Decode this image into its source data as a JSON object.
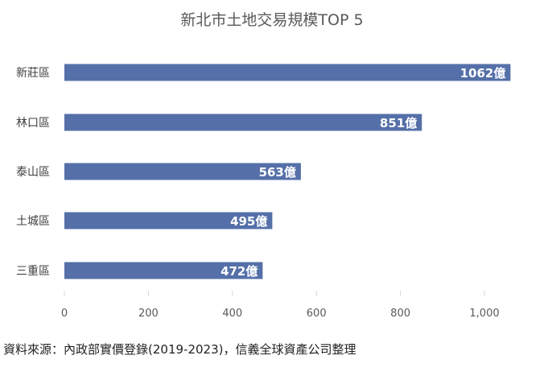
{
  "chart_data": {
    "type": "bar",
    "orientation": "horizontal",
    "title": "新北市土地交易規模TOP 5",
    "categories": [
      "新莊區",
      "林口區",
      "泰山區",
      "土城區",
      "三重區"
    ],
    "values": [
      1062,
      851,
      563,
      495,
      472
    ],
    "data_labels": [
      "1062億",
      "851億",
      "563億",
      "495億",
      "472億"
    ],
    "xlim": [
      0,
      1000
    ],
    "xticks": [
      "0",
      "200",
      "400",
      "600",
      "800",
      "1,000"
    ],
    "xtick_values": [
      0,
      200,
      400,
      600,
      800,
      1000
    ],
    "grid": false,
    "bar_color": "#5570a8"
  },
  "source": "資料來源：內政部實價登錄(2019-2023)，信義全球資產公司整理"
}
